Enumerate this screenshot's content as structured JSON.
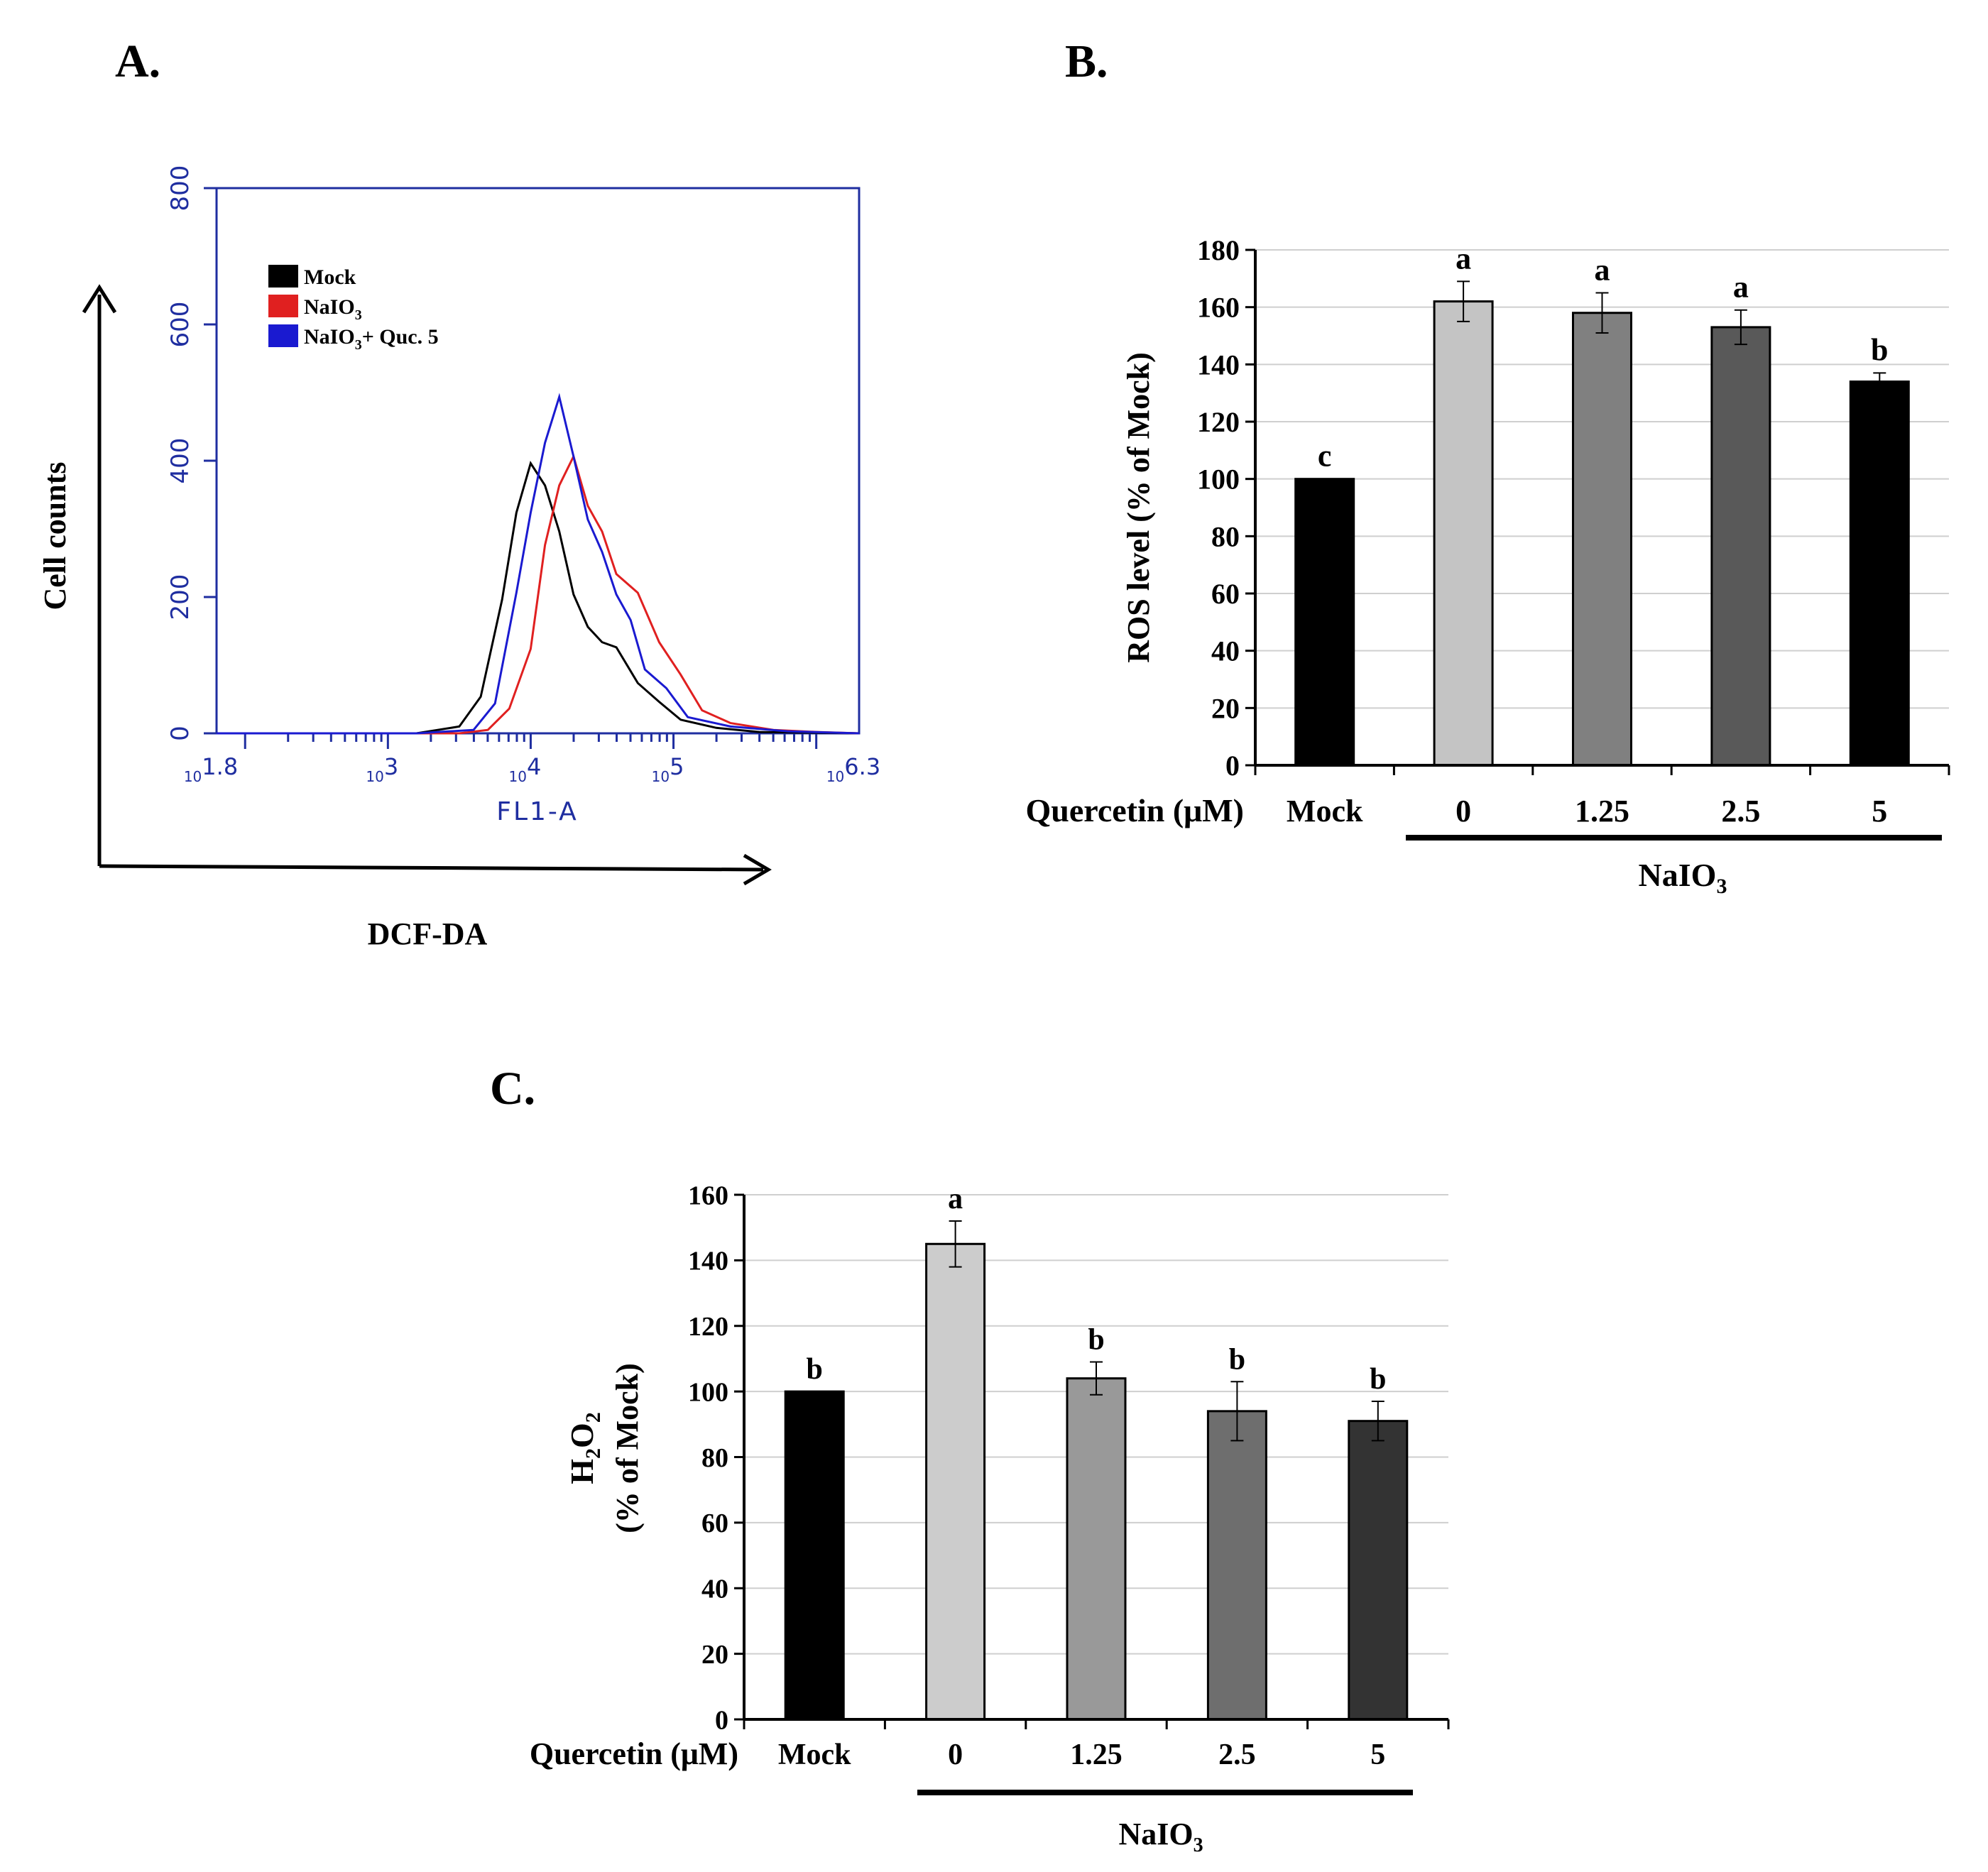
{
  "panels": {
    "a": "A.",
    "b": "B.",
    "c": "C."
  },
  "colors": {
    "mock": "#000000",
    "naio3": "#e02020",
    "quc": "#1a1ad0",
    "frame": "#1f2ea0"
  },
  "chart_data": [
    {
      "id": "A",
      "type": "line",
      "title": "",
      "xlabel": "FL1-A",
      "ylabel": "Cell counts",
      "outer_xlabel": "DCF-DA",
      "outer_ylabel": "Cell counts",
      "x_scale": "log10",
      "xlim": [
        1.8,
        6.3
      ],
      "ylim": [
        0,
        800
      ],
      "x_ticks": [
        {
          "base": "10",
          "exp": "1.8",
          "v": 1.8
        },
        {
          "base": "10",
          "exp": "3",
          "v": 3
        },
        {
          "base": "10",
          "exp": "4",
          "v": 4
        },
        {
          "base": "10",
          "exp": "5",
          "v": 5
        },
        {
          "base": "10",
          "exp": "6.3",
          "v": 6.3
        }
      ],
      "y_ticks": [
        "0",
        "200",
        "400",
        "600",
        "800"
      ],
      "series": [
        {
          "name": "Mock",
          "color": "#000000",
          "x": [
            1.8,
            3.2,
            3.5,
            3.65,
            3.8,
            3.9,
            4.0,
            4.1,
            4.2,
            4.3,
            4.4,
            4.5,
            4.6,
            4.75,
            4.9,
            5.05,
            5.3,
            5.6,
            6.3
          ],
          "y": [
            0,
            0,
            10,
            60,
            190,
            330,
            390,
            370,
            290,
            210,
            150,
            140,
            120,
            80,
            40,
            20,
            8,
            2,
            0
          ]
        },
        {
          "name": "NaIO",
          "name_sub": "3",
          "color": "#e02020",
          "x": [
            1.8,
            2.4,
            3.5,
            3.7,
            3.85,
            4.0,
            4.1,
            4.2,
            4.3,
            4.4,
            4.5,
            4.6,
            4.75,
            4.9,
            5.05,
            5.2,
            5.4,
            5.7,
            6.0,
            6.3
          ],
          "y": [
            0,
            0,
            0,
            5,
            30,
            130,
            270,
            370,
            400,
            340,
            290,
            240,
            200,
            140,
            80,
            40,
            15,
            5,
            2,
            0
          ]
        },
        {
          "name": "NaIO",
          "name_sub": "3",
          "name_suffix": "+ Quc. 5",
          "color": "#1a1ad0",
          "x": [
            1.8,
            3.2,
            3.6,
            3.75,
            3.9,
            4.0,
            4.1,
            4.2,
            4.3,
            4.4,
            4.5,
            4.6,
            4.7,
            4.8,
            4.95,
            5.1,
            5.4,
            5.8,
            6.3
          ],
          "y": [
            0,
            0,
            5,
            50,
            200,
            330,
            420,
            500,
            400,
            320,
            260,
            210,
            160,
            100,
            60,
            30,
            10,
            3,
            0
          ]
        }
      ]
    },
    {
      "id": "B",
      "type": "bar",
      "ylabel": "ROS level (% of  Mock)",
      "ylim": [
        0,
        180
      ],
      "y_ticks": [
        "0",
        "20",
        "40",
        "60",
        "80",
        "100",
        "120",
        "140",
        "160",
        "180"
      ],
      "x_title": "Quercetin (μM)",
      "categories": [
        "Mock",
        "0",
        "1.25",
        "2.5",
        "5"
      ],
      "values": [
        100,
        162,
        158,
        153,
        134
      ],
      "errors": [
        0,
        7,
        7,
        6,
        3
      ],
      "letters": [
        "c",
        "a",
        "a",
        "a",
        "b"
      ],
      "bar_colors": [
        "#000000",
        "#c4c4c4",
        "#808080",
        "#595959",
        "#000000"
      ],
      "group_label": "NaIO",
      "group_label_sub": "3"
    },
    {
      "id": "C",
      "type": "bar",
      "ylabel_main": "H",
      "ylabel_sub1": "2",
      "ylabel_mid": "O",
      "ylabel_sub2": "2",
      "ylabel_line2": "(% of Mock)",
      "ylim": [
        0,
        160
      ],
      "y_ticks": [
        "0",
        "20",
        "40",
        "60",
        "80",
        "100",
        "120",
        "140",
        "160"
      ],
      "x_title": "Quercetin (μM)",
      "categories": [
        "Mock",
        "0",
        "1.25",
        "2.5",
        "5"
      ],
      "values": [
        100,
        145,
        104,
        94,
        91
      ],
      "errors": [
        0,
        7,
        5,
        9,
        6
      ],
      "letters": [
        "b",
        "a",
        "b",
        "b",
        "b"
      ],
      "bar_colors": [
        "#000000",
        "#cccccc",
        "#999999",
        "#6e6e6e",
        "#333333"
      ],
      "group_label": "NaIO",
      "group_label_sub": "3"
    }
  ]
}
